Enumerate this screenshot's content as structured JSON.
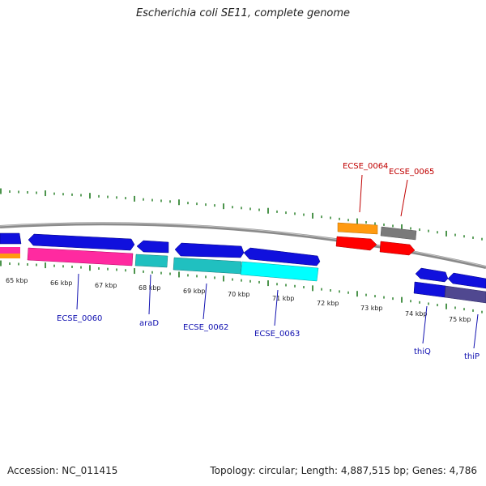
{
  "title": "Escherichia coli SE11, complete genome",
  "footer": {
    "accession": "Accession: NC_011415",
    "summary": "Topology: circular; Length: 4,887,515 bp; Genes: 4,786"
  },
  "colors": {
    "backbone": "#8a8a8a",
    "tick": "#1f7a1f",
    "label_forward": "#1010b0",
    "label_reverse": "#c00000"
  },
  "scale_labels": [
    "65 kbp",
    "66 kbp",
    "67 kbp",
    "68 kbp",
    "69 kbp",
    "70 kbp",
    "71 kbp",
    "72 kbp",
    "73 kbp",
    "74 kbp",
    "75 kbp"
  ],
  "gene_labels": [
    {
      "id": "ECSE_0060",
      "text": "ECSE_0060",
      "strand": "forward"
    },
    {
      "id": "araD",
      "text": "araD",
      "strand": "forward"
    },
    {
      "id": "ECSE_0062",
      "text": "ECSE_0062",
      "strand": "forward"
    },
    {
      "id": "ECSE_0063",
      "text": "ECSE_0063",
      "strand": "forward"
    },
    {
      "id": "thiQ",
      "text": "thiQ",
      "strand": "forward"
    },
    {
      "id": "thiP",
      "text": "thiP",
      "strand": "forward"
    },
    {
      "id": "ECSE_0064",
      "text": "ECSE_0064",
      "strand": "reverse"
    },
    {
      "id": "ECSE_0065",
      "text": "ECSE_0065",
      "strand": "reverse"
    }
  ]
}
